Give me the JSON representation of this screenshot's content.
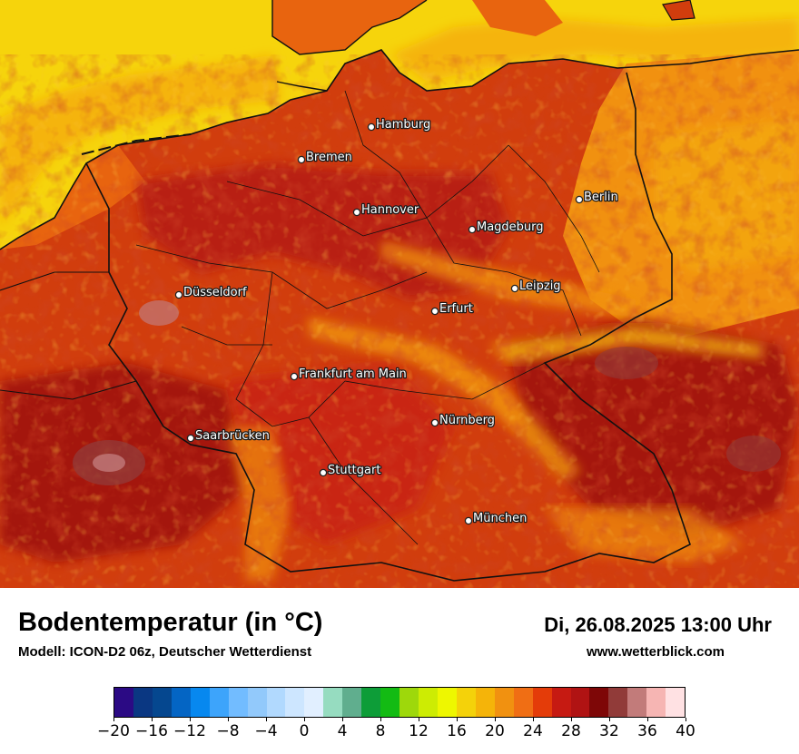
{
  "map": {
    "cities": [
      {
        "name": "Hamburg"
      },
      {
        "name": "Bremen"
      },
      {
        "name": "Berlin"
      },
      {
        "name": "Hannover"
      },
      {
        "name": "Magdeburg"
      },
      {
        "name": "Düsseldorf"
      },
      {
        "name": "Leipzig"
      },
      {
        "name": "Erfurt"
      },
      {
        "name": "Frankfurt am Main"
      },
      {
        "name": "Nürnberg"
      },
      {
        "name": "Saarbrücken"
      },
      {
        "name": "Stuttgart"
      },
      {
        "name": "München"
      }
    ]
  },
  "header": {
    "title": "Bodentemperatur (in °C)",
    "subtitle": "Modell: ICON-D2 06z, Deutscher Wetterdienst",
    "datetime": "Di, 26.08.2025 13:00 Uhr",
    "website": "www.wetterblick.com"
  },
  "legend": {
    "colors": [
      "#2b0a84",
      "#0a3782",
      "#05478f",
      "#0465c4",
      "#0788ef",
      "#3da4fb",
      "#72bcff",
      "#92c9fb",
      "#b1d9fe",
      "#cde6ff",
      "#e1efff",
      "#96dcc0",
      "#60ae8e",
      "#0d9d38",
      "#13bb13",
      "#9ed80b",
      "#cdec03",
      "#eef700",
      "#f4d20a",
      "#f5b409",
      "#f19110",
      "#f06e14",
      "#e43c09",
      "#c61a12",
      "#b01313",
      "#7e0707",
      "#913b39",
      "#c27b7a",
      "#f6b5b3",
      "#ffe1e3"
    ],
    "tick_labels": [
      "−20",
      "−16",
      "−12",
      "−8",
      "−4",
      "0",
      "4",
      "8",
      "12",
      "16",
      "20",
      "24",
      "28",
      "32",
      "36",
      "40"
    ]
  }
}
